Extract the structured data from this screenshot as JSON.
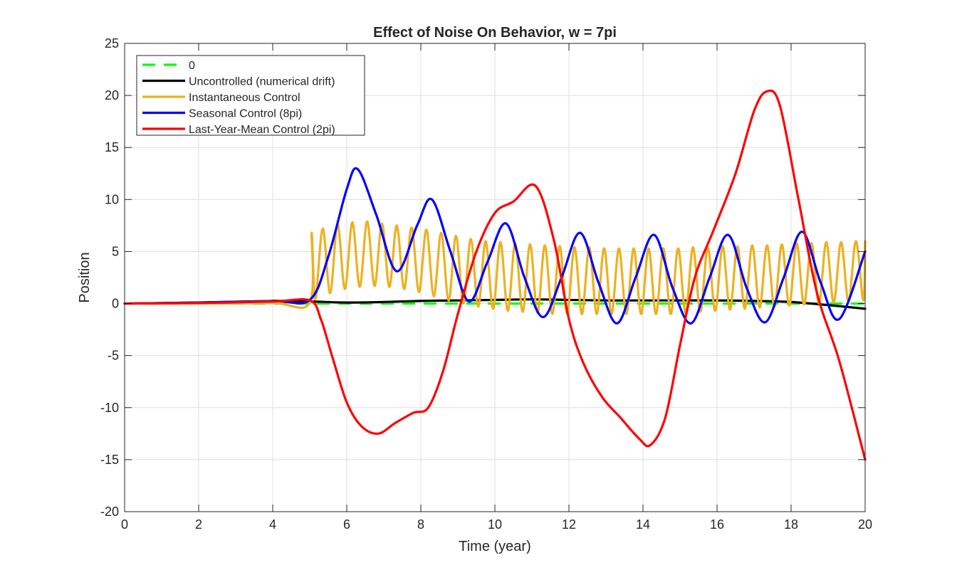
{
  "chart_data": {
    "type": "line",
    "title": "Effect of Noise On Behavior, w = 7pi",
    "xlabel": "Time (year)",
    "ylabel": "Position",
    "xlim": [
      0,
      20
    ],
    "ylim": [
      -20,
      25
    ],
    "xticks": [
      0,
      2,
      4,
      6,
      8,
      10,
      12,
      14,
      16,
      18,
      20
    ],
    "yticks": [
      -20,
      -15,
      -10,
      -5,
      0,
      5,
      10,
      15,
      20,
      25
    ],
    "xtick_labels": [
      "0",
      "2",
      "4",
      "6",
      "8",
      "10",
      "12",
      "14",
      "16",
      "18",
      "20"
    ],
    "ytick_labels": [
      "-20",
      "-15",
      "-10",
      "-5",
      "0",
      "5",
      "10",
      "15",
      "20",
      "25"
    ],
    "grid": true,
    "legend_position": "top-left",
    "series": [
      {
        "name": "0",
        "color": "#00ff00",
        "style": "dashed",
        "x": [
          0,
          20
        ],
        "y": [
          0,
          0
        ]
      },
      {
        "name": "Uncontrolled (numerical drift)",
        "color": "#000000",
        "style": "solid",
        "x": [
          0,
          2,
          4,
          5,
          6,
          7,
          8,
          9,
          10,
          11,
          12,
          13,
          14,
          15,
          16,
          17,
          18,
          19,
          20
        ],
        "y": [
          0,
          0.1,
          0.25,
          0.2,
          0.1,
          0.15,
          0.25,
          0.3,
          0.35,
          0.4,
          0.35,
          0.3,
          0.3,
          0.3,
          0.3,
          0.25,
          0.15,
          -0.15,
          -0.5
        ]
      },
      {
        "name": "Instantaneous Control",
        "color": "#edb120",
        "style": "solid",
        "x": [
          0,
          2,
          4,
          5,
          5.05,
          5.15,
          5.35,
          5.55,
          5.75,
          5.95,
          6.15,
          6.35,
          6.55,
          6.75,
          6.95,
          7.15,
          7.35,
          7.55,
          7.75,
          7.95,
          8.15,
          8.35,
          8.55,
          8.75,
          8.95,
          9.15,
          9.35,
          9.55,
          9.75,
          9.95,
          10.15,
          10.35,
          10.55,
          10.75,
          10.95,
          11.15,
          11.35,
          11.55,
          11.75,
          11.95,
          12.15,
          12.35,
          12.55,
          12.75,
          12.95,
          13.15,
          13.35,
          13.55,
          13.75,
          13.95,
          14.15,
          14.35,
          14.55,
          14.75,
          14.95,
          15.15,
          15.35,
          15.55,
          15.75,
          15.95,
          16.15,
          16.35,
          16.55,
          16.75,
          16.95,
          17.15,
          17.35,
          17.55,
          17.75,
          17.95,
          18.15,
          18.35,
          18.55,
          18.75,
          18.95,
          19.15,
          19.35,
          19.55,
          19.75,
          19.95,
          20
        ],
        "y": [
          0,
          0,
          0.05,
          0.1,
          6.8,
          0.4,
          7.2,
          1.0,
          7.6,
          1.4,
          7.8,
          1.6,
          7.9,
          1.7,
          7.7,
          1.6,
          7.5,
          1.4,
          7.3,
          1.1,
          7.1,
          0.7,
          6.8,
          0.3,
          6.5,
          0,
          6.2,
          -0.3,
          6.0,
          -0.5,
          5.9,
          -0.7,
          5.8,
          -0.8,
          5.7,
          -0.9,
          5.6,
          -1.0,
          5.5,
          -1.0,
          5.4,
          -1.0,
          5.4,
          -1.0,
          5.3,
          -1.0,
          5.3,
          -1.0,
          5.3,
          -1.0,
          5.3,
          -1.0,
          5.3,
          -1.0,
          5.3,
          -0.9,
          5.4,
          -0.8,
          5.4,
          -0.7,
          5.5,
          -0.6,
          5.5,
          -0.5,
          5.6,
          -0.4,
          5.6,
          -0.3,
          5.7,
          -0.2,
          5.8,
          -0.1,
          5.8,
          0,
          5.9,
          0.1,
          5.9,
          0.2,
          6.0,
          0.3,
          6.0
        ]
      },
      {
        "name": "Seasonal Control (8pi)",
        "color": "#0000ff",
        "style": "solid",
        "x": [
          0,
          2,
          4,
          5,
          5.5,
          6,
          6.3,
          6.8,
          7.35,
          7.9,
          8.3,
          8.8,
          9.3,
          9.8,
          10.3,
          10.8,
          11.3,
          11.8,
          12.3,
          12.8,
          13.3,
          13.8,
          14.3,
          14.8,
          15.3,
          15.8,
          16.3,
          16.8,
          17.3,
          17.8,
          18.3,
          18.8,
          19.3,
          20
        ],
        "y": [
          0,
          0.1,
          0.25,
          0.35,
          4.5,
          11.0,
          12.9,
          8.5,
          3.1,
          7.5,
          10.0,
          5.0,
          0.2,
          4.0,
          7.7,
          2.5,
          -1.3,
          2.5,
          6.8,
          2.0,
          -1.9,
          2.5,
          6.6,
          1.5,
          -1.9,
          2.5,
          6.6,
          1.5,
          -1.8,
          2.5,
          6.9,
          2.0,
          -1.5,
          5.0
        ]
      },
      {
        "name": "Last-Year-Mean Control (2pi)",
        "color": "#ff0000",
        "style": "solid",
        "x": [
          0,
          2,
          4,
          5,
          5.3,
          5.6,
          6.0,
          6.4,
          6.85,
          7.3,
          7.8,
          8.2,
          8.6,
          9.0,
          9.5,
          10.0,
          10.5,
          11.1,
          11.6,
          12.0,
          12.4,
          12.9,
          13.4,
          13.9,
          14.2,
          14.6,
          15.0,
          15.4,
          15.9,
          16.5,
          17.0,
          17.35,
          17.7,
          18.2,
          18.7,
          19.3,
          20
        ],
        "y": [
          0,
          0.05,
          0.2,
          0.3,
          -1.5,
          -5.0,
          -9.5,
          -11.8,
          -12.5,
          -11.5,
          -10.5,
          -10.0,
          -6.5,
          -1.0,
          5.0,
          8.7,
          9.8,
          11.3,
          6.0,
          -1.5,
          -5.8,
          -9.0,
          -11.0,
          -13.0,
          -13.6,
          -11.0,
          -4.0,
          2.5,
          7.0,
          12.5,
          18.5,
          20.4,
          19.0,
          10.0,
          1.0,
          -5.5,
          -15.0
        ]
      }
    ]
  }
}
